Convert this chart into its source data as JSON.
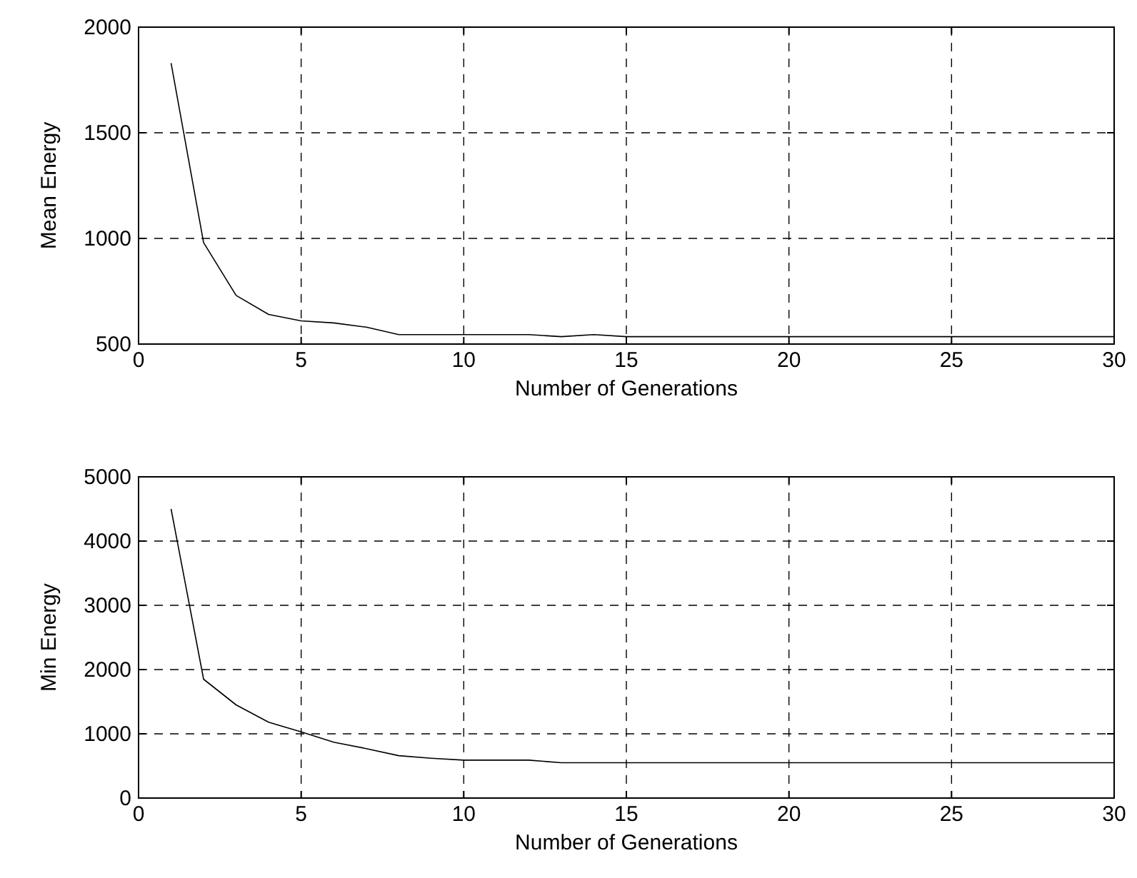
{
  "chart_data": [
    {
      "type": "line",
      "xlabel": "Number of Generations",
      "ylabel": "Mean Energy",
      "x": [
        1,
        2,
        3,
        4,
        5,
        6,
        7,
        8,
        9,
        10,
        11,
        12,
        13,
        14,
        15,
        16,
        17,
        18,
        19,
        20,
        21,
        22,
        23,
        24,
        25,
        26,
        27,
        28,
        29,
        30
      ],
      "series": [
        {
          "color": "#000000",
          "values": [
            1830,
            980,
            730,
            640,
            610,
            600,
            580,
            545,
            545,
            545,
            545,
            545,
            535,
            545,
            535,
            535,
            535,
            535,
            535,
            535,
            535,
            535,
            535,
            535,
            535,
            535,
            535,
            535,
            535,
            535
          ]
        }
      ],
      "xlim": [
        0,
        30
      ],
      "xticks": [
        0,
        5,
        10,
        15,
        20,
        25,
        30
      ],
      "ylim": [
        500,
        2000
      ],
      "yticks": [
        500,
        1000,
        1500,
        2000
      ],
      "grid": true,
      "marker": "none",
      "line_style": "solid"
    },
    {
      "type": "line",
      "xlabel": "Number of Generations",
      "ylabel": "Min Energy",
      "x": [
        1,
        2,
        3,
        4,
        5,
        6,
        7,
        8,
        9,
        10,
        11,
        12,
        13,
        14,
        15,
        16,
        17,
        18,
        19,
        20,
        21,
        22,
        23,
        24,
        25,
        26,
        27,
        28,
        29,
        30
      ],
      "series": [
        {
          "color": "#000000",
          "values": [
            4500,
            1850,
            1450,
            1180,
            1030,
            870,
            770,
            660,
            620,
            590,
            590,
            590,
            550,
            550,
            550,
            550,
            550,
            550,
            550,
            550,
            550,
            550,
            550,
            550,
            550,
            550,
            550,
            550,
            550,
            550
          ]
        }
      ],
      "xlim": [
        0,
        30
      ],
      "xticks": [
        0,
        5,
        10,
        15,
        20,
        25,
        30
      ],
      "ylim": [
        0,
        5000
      ],
      "yticks": [
        0,
        1000,
        2000,
        3000,
        4000,
        5000
      ],
      "grid": true,
      "marker": "none",
      "line_style": "solid"
    }
  ]
}
